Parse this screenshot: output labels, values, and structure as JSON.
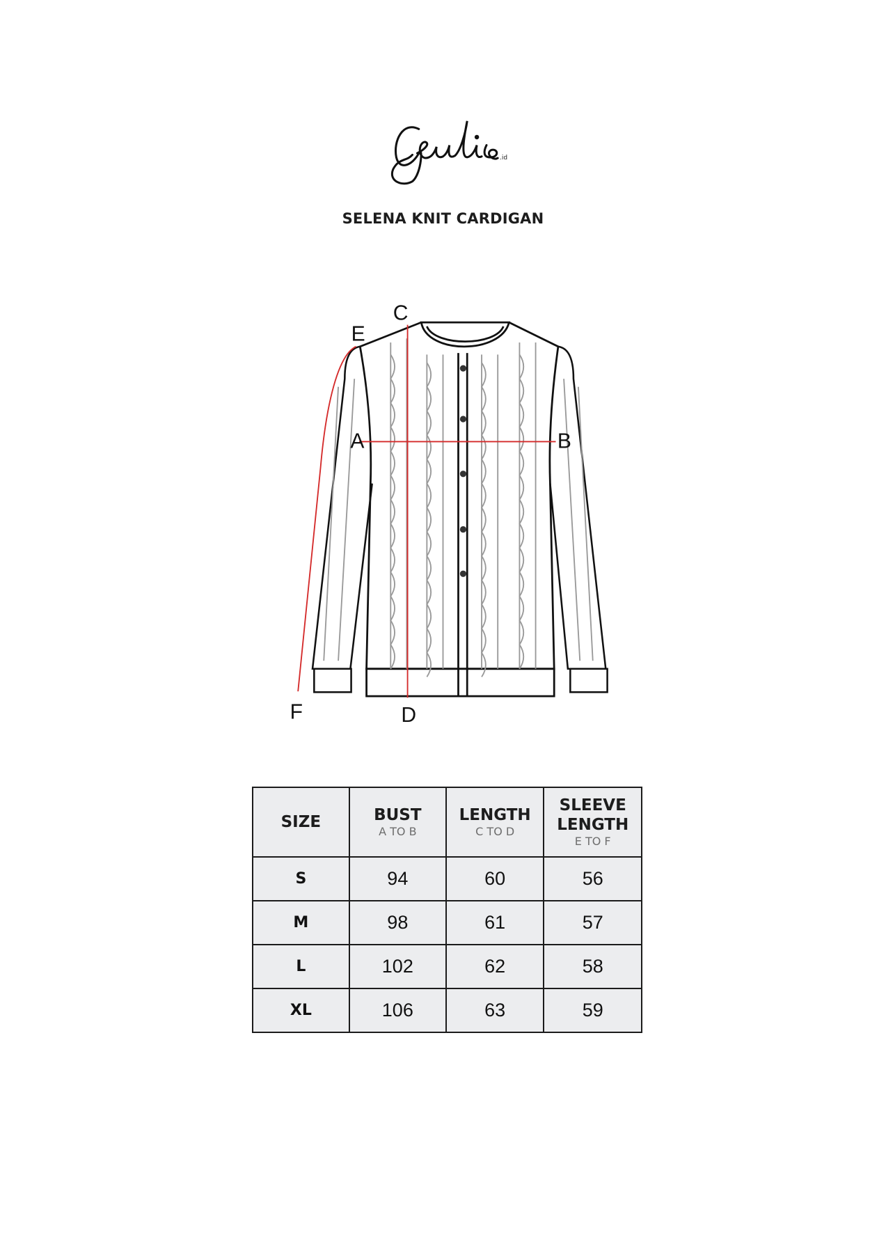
{
  "brand": {
    "logo_text": "Geulis",
    "suffix": ".id"
  },
  "title": "SELENA KNIT CARDIGAN",
  "diagram": {
    "labels": {
      "A": "A",
      "B": "B",
      "C": "C",
      "D": "D",
      "E": "E",
      "F": "F"
    },
    "measure_color": "#d42a2a"
  },
  "table": {
    "headers": [
      {
        "label": "SIZE",
        "sub": ""
      },
      {
        "label": "BUST",
        "sub": "A TO B"
      },
      {
        "label": "LENGTH",
        "sub": "C TO D"
      },
      {
        "label": "SLEEVE LENGTH",
        "sub": "E TO F"
      }
    ],
    "rows": [
      {
        "size": "S",
        "bust": "94",
        "length": "60",
        "sleeve": "56"
      },
      {
        "size": "M",
        "bust": "98",
        "length": "61",
        "sleeve": "57"
      },
      {
        "size": "L",
        "bust": "102",
        "length": "62",
        "sleeve": "58"
      },
      {
        "size": "XL",
        "bust": "106",
        "length": "63",
        "sleeve": "59"
      }
    ]
  }
}
